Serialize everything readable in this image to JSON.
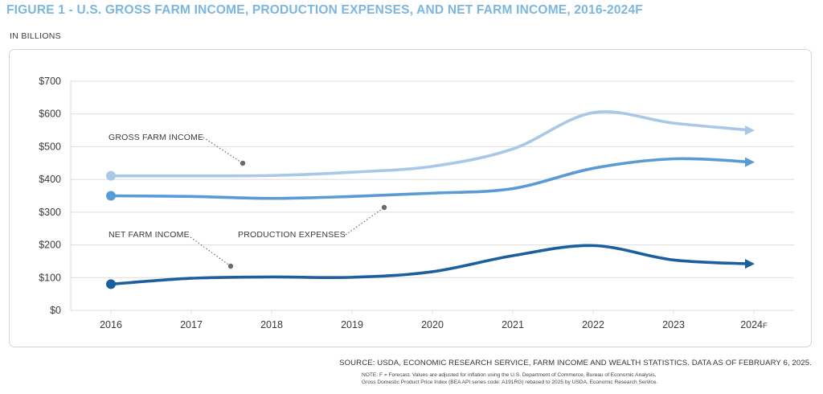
{
  "figure": {
    "title": "FIGURE 1 - U.S. GROSS FARM INCOME, PRODUCTION EXPENSES, AND NET FARM INCOME, 2016-2024F",
    "units_label": "IN BILLIONS",
    "source": "SOURCE: USDA, ECONOMIC RESEARCH SERVICE, FARM INCOME AND WEALTH STATISTICS. DATA AS OF FEBRUARY 6, 2025.",
    "note_line1": "NOTE: F = Forecast. Values are adjusted for inflation using the U.S. Department of Commerce, Bureau of Economic Analysis,",
    "note_line2": "Gross Domestic Product Price Index (BEA API series code: A191RG) rebased to 2025 by USDA, Economic Research Service."
  },
  "colors": {
    "title": "#7cb6e0",
    "gross": "#a8c8e6",
    "expenses": "#5b9bd5",
    "net": "#1b5f9e",
    "grid": "#dcdcdc",
    "callout_dot": "#6b6b6b",
    "text": "#3a3a3a"
  },
  "chart_data": {
    "type": "line",
    "title": "",
    "xlabel": "",
    "ylabel": "",
    "categories": [
      "2016",
      "2017",
      "2018",
      "2019",
      "2020",
      "2021",
      "2022",
      "2023",
      "2024F"
    ],
    "ylim": [
      0,
      700
    ],
    "yticks": [
      0,
      100,
      200,
      300,
      400,
      500,
      600,
      700
    ],
    "ytick_labels": [
      "$0",
      "$100",
      "$200",
      "$300",
      "$400",
      "$500",
      "$600",
      "$700"
    ],
    "grid": true,
    "series": [
      {
        "name": "GROSS FARM INCOME",
        "values": [
          411,
          411,
          412,
          422,
          440,
          493,
          604,
          572,
          550
        ]
      },
      {
        "name": "PRODUCTION EXPENSES",
        "values": [
          350,
          348,
          342,
          348,
          358,
          372,
          434,
          463,
          453
        ]
      },
      {
        "name": "NET FARM INCOME",
        "values": [
          80,
          98,
          102,
          101,
          118,
          167,
          198,
          154,
          142
        ]
      }
    ]
  }
}
